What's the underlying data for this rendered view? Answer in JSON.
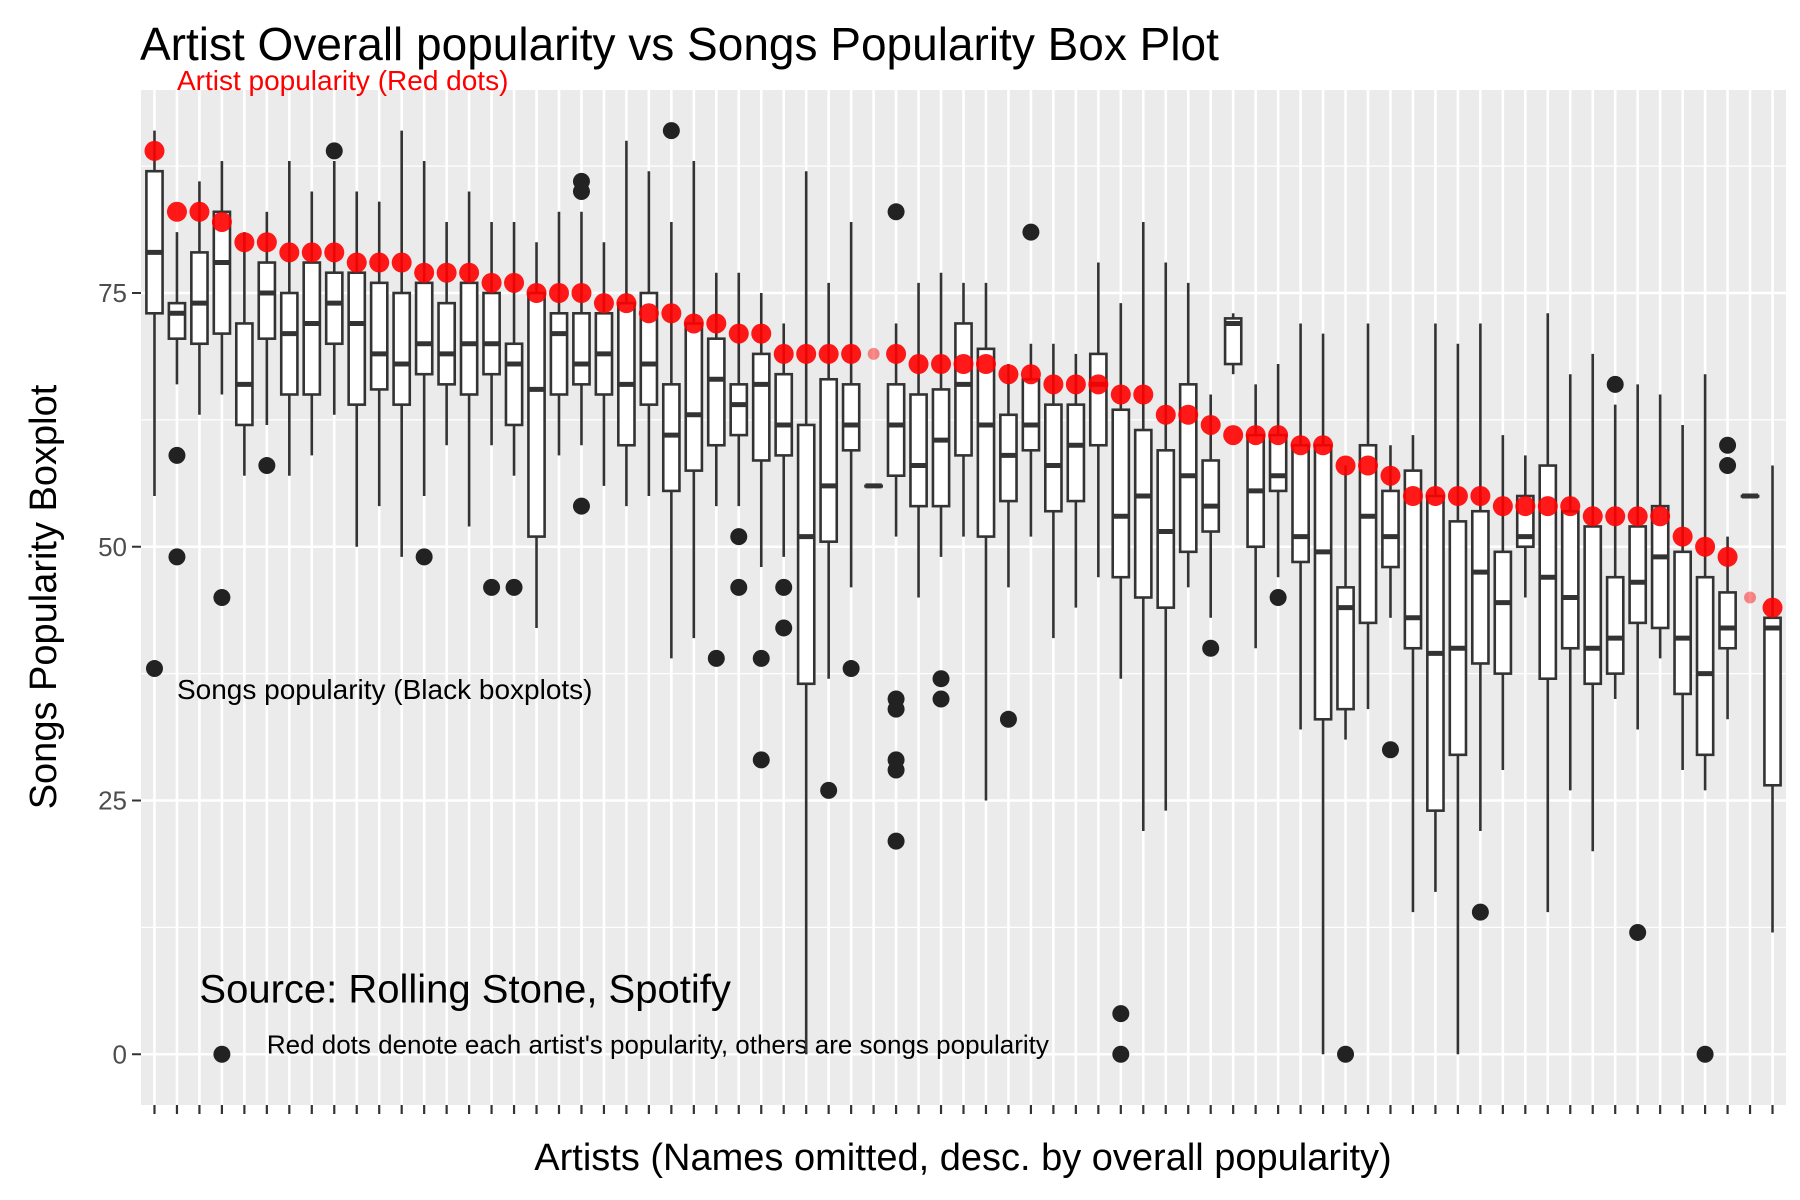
{
  "chart_data": {
    "type": "boxplot",
    "title": "Artist Overall popularity vs Songs Popularity Box Plot",
    "xlabel": "Artists (Names omitted, desc. by overall popularity)",
    "ylabel": "Songs Popularity Boxplot",
    "ylim": [
      -5,
      95
    ],
    "yticks": [
      0,
      25,
      50,
      75
    ],
    "grid": true,
    "legend": "none",
    "colors": {
      "box": "#333333",
      "artist_dot": "#ff0000",
      "panel": "#ebebeb",
      "grid": "#ffffff",
      "tick_label": "#4d4d4d"
    },
    "annotations": [
      {
        "text": "Artist popularity (Red dots)",
        "x_index": 1,
        "y": 96,
        "color": "#ff0000",
        "size": "medium"
      },
      {
        "text": "Songs popularity (Black boxplots)",
        "x_index": 1,
        "y": 36,
        "color": "#000000",
        "size": "medium"
      },
      {
        "text": "Source: Rolling Stone, Spotify",
        "x_index": 2,
        "y": 6.5,
        "color": "#000000",
        "size": "large"
      },
      {
        "text": "Red dots denote each artist's popularity, others are songs popularity",
        "x_index": 5,
        "y": 1,
        "color": "#000000",
        "size": "small"
      }
    ],
    "artists": [
      {
        "box": [
          55,
          73,
          79,
          87,
          91
        ],
        "out": [
          38
        ],
        "pop": 89
      },
      {
        "box": [
          66,
          70.5,
          73,
          74,
          81
        ],
        "out": [
          59,
          49
        ],
        "pop": 83
      },
      {
        "box": [
          63,
          70,
          74,
          79,
          86
        ],
        "out": [],
        "pop": 83
      },
      {
        "box": [
          65,
          71,
          78,
          83,
          88
        ],
        "out": [
          45,
          0
        ],
        "pop": 82
      },
      {
        "box": [
          57,
          62,
          66,
          72,
          81
        ],
        "out": [],
        "pop": 80
      },
      {
        "box": [
          62,
          70.5,
          75,
          78,
          83
        ],
        "out": [
          58
        ],
        "pop": 80
      },
      {
        "box": [
          57,
          65,
          71,
          75,
          88
        ],
        "out": [],
        "pop": 79
      },
      {
        "box": [
          59,
          65,
          72,
          78,
          85
        ],
        "out": [],
        "pop": 79
      },
      {
        "box": [
          63,
          70,
          74,
          77,
          88
        ],
        "out": [
          89
        ],
        "pop": 79
      },
      {
        "box": [
          50,
          64,
          72,
          77,
          85
        ],
        "out": [],
        "pop": 78
      },
      {
        "box": [
          54,
          65.5,
          69,
          76,
          84
        ],
        "out": [],
        "pop": 78
      },
      {
        "box": [
          49,
          64,
          68,
          75,
          91
        ],
        "out": [],
        "pop": 78
      },
      {
        "box": [
          55,
          67,
          70,
          76,
          88
        ],
        "out": [
          49
        ],
        "pop": 77
      },
      {
        "box": [
          60,
          66,
          69,
          74,
          82
        ],
        "out": [],
        "pop": 77
      },
      {
        "box": [
          52,
          65,
          70,
          76,
          85
        ],
        "out": [],
        "pop": 77
      },
      {
        "box": [
          60,
          67,
          70,
          75,
          82
        ],
        "out": [
          46
        ],
        "pop": 76
      },
      {
        "box": [
          57,
          62,
          68,
          70,
          82
        ],
        "out": [
          46
        ],
        "pop": 76
      },
      {
        "box": [
          42,
          51,
          65.5,
          75,
          80
        ],
        "out": [],
        "pop": 75
      },
      {
        "box": [
          59,
          65,
          71,
          73,
          83
        ],
        "out": [],
        "pop": 75
      },
      {
        "box": [
          60,
          66,
          68,
          73,
          83
        ],
        "out": [
          86,
          85,
          54
        ],
        "pop": 75
      },
      {
        "box": [
          56,
          65,
          69,
          73,
          80
        ],
        "out": [],
        "pop": 74
      },
      {
        "box": [
          54,
          60,
          66,
          74,
          90
        ],
        "out": [],
        "pop": 74
      },
      {
        "box": [
          55,
          64,
          68,
          75,
          87
        ],
        "out": [],
        "pop": 73
      },
      {
        "box": [
          39,
          55.5,
          61,
          66,
          82
        ],
        "out": [
          91
        ],
        "pop": 73
      },
      {
        "box": [
          41,
          57.5,
          63,
          72,
          88
        ],
        "out": [],
        "pop": 72
      },
      {
        "box": [
          54,
          60,
          66.5,
          70.5,
          77
        ],
        "out": [
          39
        ],
        "pop": 72
      },
      {
        "box": [
          54,
          61,
          64,
          66,
          77
        ],
        "out": [
          51,
          46
        ],
        "pop": 71
      },
      {
        "box": [
          48,
          58.5,
          66,
          69,
          75
        ],
        "out": [
          39,
          29
        ],
        "pop": 71
      },
      {
        "box": [
          49,
          59,
          62,
          67,
          72
        ],
        "out": [
          46,
          42
        ],
        "pop": 69
      },
      {
        "box": [
          0,
          36.5,
          51,
          62,
          87
        ],
        "out": [],
        "pop": 69
      },
      {
        "box": [
          37,
          50.5,
          56,
          66.5,
          76
        ],
        "out": [
          26
        ],
        "pop": 69
      },
      {
        "box": [
          46,
          59.5,
          62,
          66,
          82
        ],
        "out": [
          38
        ],
        "pop": 69
      },
      {
        "box": [
          56,
          56,
          56,
          56,
          56
        ],
        "out": [],
        "pop": 69
      },
      {
        "box": [
          51,
          57,
          62,
          66,
          72
        ],
        "out": [
          83,
          35,
          34,
          29,
          28,
          21
        ],
        "pop": 69
      },
      {
        "box": [
          45,
          54,
          58,
          65,
          76
        ],
        "out": [],
        "pop": 68
      },
      {
        "box": [
          49,
          54,
          60.5,
          65.5,
          77
        ],
        "out": [
          37,
          35
        ],
        "pop": 68
      },
      {
        "box": [
          51,
          59,
          66,
          72,
          76
        ],
        "out": [],
        "pop": 68
      },
      {
        "box": [
          25,
          51,
          62,
          69.5,
          76
        ],
        "out": [],
        "pop": 68
      },
      {
        "box": [
          46,
          54.5,
          59,
          63,
          68
        ],
        "out": [
          33
        ],
        "pop": 67
      },
      {
        "box": [
          51,
          59.5,
          62,
          66.5,
          70
        ],
        "out": [
          81
        ],
        "pop": 67
      },
      {
        "box": [
          41,
          53.5,
          58,
          64,
          70
        ],
        "out": [],
        "pop": 66
      },
      {
        "box": [
          44,
          54.5,
          60,
          64,
          69
        ],
        "out": [],
        "pop": 66
      },
      {
        "box": [
          47,
          60,
          66,
          69,
          78
        ],
        "out": [],
        "pop": 66
      },
      {
        "box": [
          37,
          47,
          53,
          63.5,
          74
        ],
        "out": [
          4,
          0
        ],
        "pop": 65
      },
      {
        "box": [
          22,
          45,
          55,
          61.5,
          82
        ],
        "out": [],
        "pop": 65
      },
      {
        "box": [
          24,
          44,
          51.5,
          59.5,
          78
        ],
        "out": [],
        "pop": 63
      },
      {
        "box": [
          46,
          49.5,
          57,
          66,
          76
        ],
        "out": [],
        "pop": 63
      },
      {
        "box": [
          43,
          51.5,
          54,
          58.5,
          65
        ],
        "out": [
          40
        ],
        "pop": 62
      },
      {
        "box": [
          67,
          68,
          72,
          72.5,
          73
        ],
        "out": [],
        "pop": 61
      },
      {
        "box": [
          40,
          50,
          55.5,
          61,
          66
        ],
        "out": [],
        "pop": 61
      },
      {
        "box": [
          47,
          55.5,
          57,
          61,
          68
        ],
        "out": [
          45
        ],
        "pop": 61
      },
      {
        "box": [
          32,
          48.5,
          51,
          60,
          72
        ],
        "out": [],
        "pop": 60
      },
      {
        "box": [
          0,
          33,
          49.5,
          60,
          71
        ],
        "out": [],
        "pop": 60
      },
      {
        "box": [
          31,
          34,
          44,
          46,
          58
        ],
        "out": [
          0
        ],
        "pop": 58
      },
      {
        "box": [
          34,
          42.5,
          53,
          60,
          72
        ],
        "out": [],
        "pop": 58
      },
      {
        "box": [
          43,
          48,
          51,
          55.5,
          60
        ],
        "out": [
          30
        ],
        "pop": 57
      },
      {
        "box": [
          14,
          40,
          43,
          57.5,
          61
        ],
        "out": [],
        "pop": 55
      },
      {
        "box": [
          16,
          24,
          39.5,
          55,
          72
        ],
        "out": [],
        "pop": 55
      },
      {
        "box": [
          0,
          29.5,
          40,
          52.5,
          70
        ],
        "out": [],
        "pop": 55
      },
      {
        "box": [
          22,
          38.5,
          47.5,
          53.5,
          72
        ],
        "out": [
          14
        ],
        "pop": 55
      },
      {
        "box": [
          28,
          37.5,
          44.5,
          49.5,
          61
        ],
        "out": [],
        "pop": 54
      },
      {
        "box": [
          45,
          50,
          51,
          55,
          59
        ],
        "out": [],
        "pop": 54
      },
      {
        "box": [
          14,
          37,
          47,
          58,
          73
        ],
        "out": [],
        "pop": 54
      },
      {
        "box": [
          26,
          40,
          45,
          53.5,
          67
        ],
        "out": [],
        "pop": 54
      },
      {
        "box": [
          20,
          36.5,
          40,
          52,
          69
        ],
        "out": [],
        "pop": 53
      },
      {
        "box": [
          35,
          37.5,
          41,
          47,
          64
        ],
        "out": [
          66
        ],
        "pop": 53
      },
      {
        "box": [
          32,
          42.5,
          46.5,
          52,
          66
        ],
        "out": [
          12
        ],
        "pop": 53
      },
      {
        "box": [
          39,
          42,
          49,
          54,
          65
        ],
        "out": [],
        "pop": 53
      },
      {
        "box": [
          28,
          35.5,
          41,
          49.5,
          62
        ],
        "out": [],
        "pop": 51
      },
      {
        "box": [
          26,
          29.5,
          37.5,
          47,
          67
        ],
        "out": [
          0
        ],
        "pop": 50
      },
      {
        "box": [
          33,
          40,
          42,
          45.5,
          51
        ],
        "out": [
          60,
          58
        ],
        "pop": 49
      },
      {
        "box": [
          55,
          55,
          55,
          55,
          55
        ],
        "out": [],
        "pop": 45
      },
      {
        "box": [
          12,
          26.5,
          42,
          43,
          58
        ],
        "out": [],
        "pop": 44
      }
    ]
  }
}
